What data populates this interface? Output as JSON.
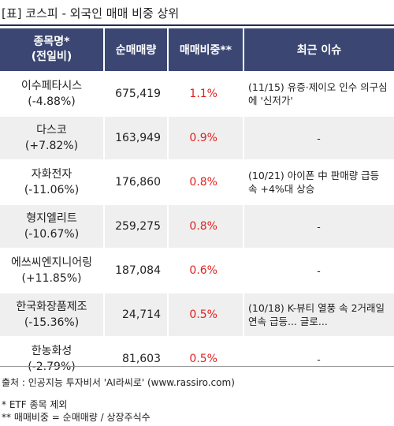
{
  "title": "[표] 코스피 - 외국인 매매 비중 상위",
  "headers": {
    "name_line1": "종목명*",
    "name_line2": "(전일비)",
    "volume": "순매매량",
    "ratio": "매매비중**",
    "issue": "최근 이슈"
  },
  "rows": [
    {
      "name": "이수페타시스",
      "change": "(-4.88%)",
      "volume": "675,419",
      "ratio": "1.1%",
      "issue": "(11/15) 유증·제이오 인수 의구심에 '신저가'"
    },
    {
      "name": "다스코",
      "change": "(+7.82%)",
      "volume": "163,949",
      "ratio": "0.9%",
      "issue": "-"
    },
    {
      "name": "자화전자",
      "change": "(-11.06%)",
      "volume": "176,860",
      "ratio": "0.8%",
      "issue": "(10/21) 아이폰 中 판매량 급등 속 +4%대 상승"
    },
    {
      "name": "형지엘리트",
      "change": "(-10.67%)",
      "volume": "259,275",
      "ratio": "0.8%",
      "issue": "-"
    },
    {
      "name": "에쓰씨엔지니어링",
      "change": "(+11.85%)",
      "volume": "187,084",
      "ratio": "0.6%",
      "issue": "-"
    },
    {
      "name": "한국화장품제조",
      "change": "(-15.36%)",
      "volume": "24,714",
      "ratio": "0.5%",
      "issue": "(10/18) K-뷰티 열풍 속 2거래일 연속 급등... 글로..."
    },
    {
      "name": "한농화성",
      "change": "(-2.79%)",
      "volume": "81,603",
      "ratio": "0.5%",
      "issue": "-"
    }
  ],
  "footer": {
    "source": "출처 : 인공지능 투자비서 'AI라씨로' (www.rassiro.com)",
    "note1": "* ETF 종목 제외",
    "note2": "** 매매비중 = 순매매량 / 상장주식수"
  },
  "colors": {
    "header_bg": "#3b4772",
    "ratio_text": "#e02020",
    "stripe": "#efefef"
  }
}
